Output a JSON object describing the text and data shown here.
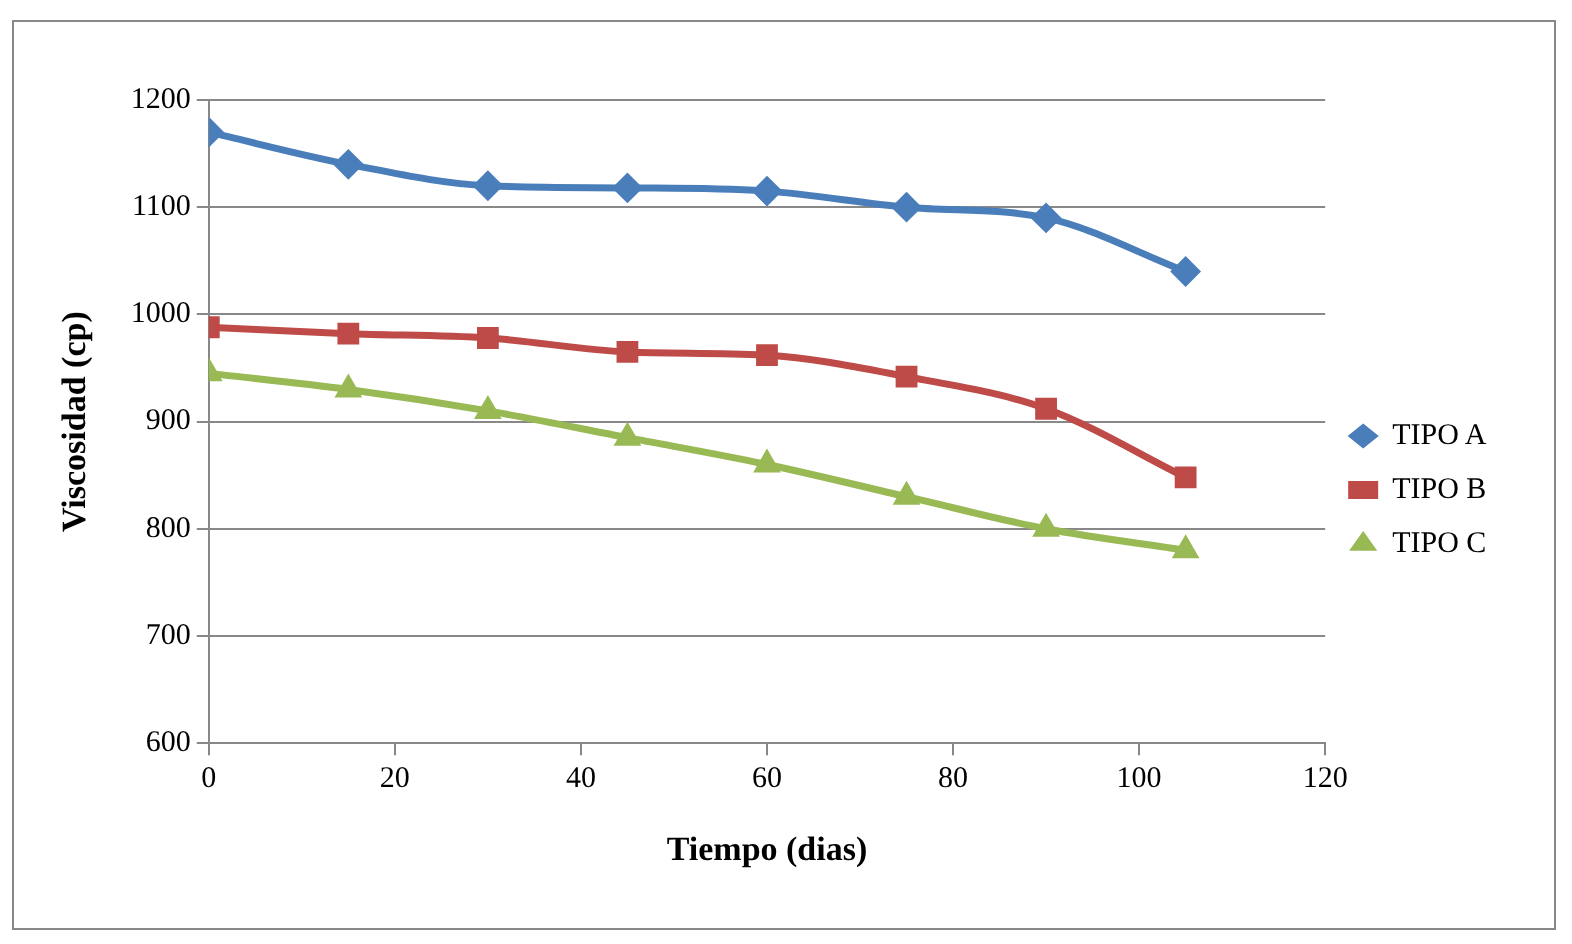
{
  "chart_data": {
    "type": "line",
    "xlabel": "Tiempo (dias)",
    "ylabel": "Viscosidad (cp)",
    "x": [
      0,
      15,
      30,
      45,
      60,
      75,
      90,
      105
    ],
    "series": [
      {
        "name": "TIPO A",
        "color": "#4a7ebb",
        "marker": "diamond",
        "values": [
          1170,
          1140,
          1120,
          1118,
          1115,
          1100,
          1090,
          1040
        ]
      },
      {
        "name": "TIPO B",
        "color": "#be4b48",
        "marker": "square",
        "values": [
          988,
          982,
          978,
          965,
          962,
          942,
          912,
          848
        ]
      },
      {
        "name": "TIPO C",
        "color": "#98b954",
        "marker": "triangle",
        "values": [
          945,
          930,
          910,
          885,
          860,
          830,
          800,
          780
        ]
      }
    ],
    "xlim": [
      0,
      120
    ],
    "xticks": [
      0,
      20,
      40,
      60,
      80,
      100,
      120
    ],
    "ylim": [
      600,
      1200
    ],
    "yticks": [
      600,
      700,
      800,
      900,
      1000,
      1100,
      1200
    ],
    "grid": "y",
    "legend": "right"
  }
}
